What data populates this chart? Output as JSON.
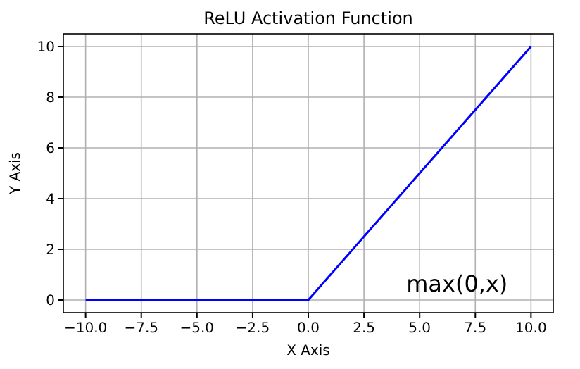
{
  "chart_data": {
    "type": "line",
    "title": "ReLU Activation Function",
    "xlabel": "X Axis",
    "ylabel": "Y Axis",
    "x": [
      -10,
      0,
      10
    ],
    "series": [
      {
        "color": "#0000ff",
        "values": [
          0,
          0,
          10
        ]
      }
    ],
    "xlim": [
      -11,
      11
    ],
    "ylim": [
      -0.5,
      10.5
    ],
    "xticks": [
      {
        "value": -10,
        "label": "−10.0"
      },
      {
        "value": -7.5,
        "label": "−7.5"
      },
      {
        "value": -5,
        "label": "−5.0"
      },
      {
        "value": -2.5,
        "label": "−2.5"
      },
      {
        "value": 0,
        "label": "0.0"
      },
      {
        "value": 2.5,
        "label": "2.5"
      },
      {
        "value": 5,
        "label": "5.0"
      },
      {
        "value": 7.5,
        "label": "7.5"
      },
      {
        "value": 10,
        "label": "10.0"
      }
    ],
    "yticks": [
      0,
      2,
      4,
      6,
      8,
      10
    ],
    "grid": true,
    "marker": "none",
    "line_style": "solid",
    "annotations": [
      "max(0,x)"
    ]
  }
}
